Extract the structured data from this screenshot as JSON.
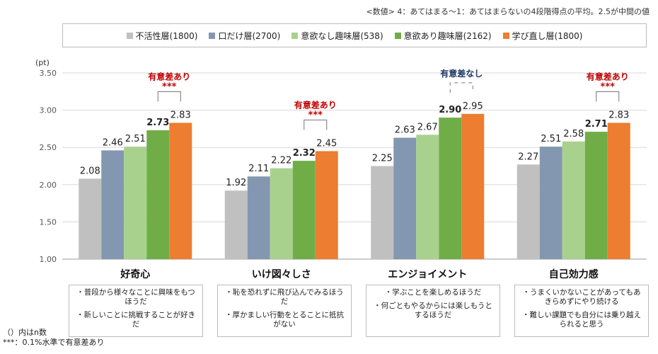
{
  "note": "<数値> 4：あてはまる～1：あてはまらないの4段階得点の平均。2.5が中間の値",
  "legend": [
    {
      "name": "不活性層(1800)",
      "color": "#c0c0c0"
    },
    {
      "name": "口だけ層(2700)",
      "color": "#8497b0"
    },
    {
      "name": "意欲なし趣味層(538)",
      "color": "#a9d18e"
    },
    {
      "name": "意欲あり趣味層(2162)",
      "color": "#70ad47"
    },
    {
      "name": "学び直し層(1800)",
      "color": "#ed7d31"
    }
  ],
  "chart_data": {
    "type": "bar",
    "ylabel": "(pt)",
    "ylim": [
      1.0,
      3.5
    ],
    "yticks": [
      "1.00",
      "1.50",
      "2.00",
      "2.50",
      "3.00",
      "3.50"
    ],
    "categories": [
      "好奇心",
      "いけ図々しさ",
      "エンジョイメント",
      "自己効力感"
    ],
    "series": [
      {
        "name": "不活性層(1800)",
        "color": "#c0c0c0",
        "values": [
          2.08,
          1.92,
          2.25,
          2.27
        ]
      },
      {
        "name": "口だけ層(2700)",
        "color": "#8497b0",
        "values": [
          2.46,
          2.11,
          2.63,
          2.51
        ]
      },
      {
        "name": "意欲なし趣味層(538)",
        "color": "#a9d18e",
        "values": [
          2.51,
          2.22,
          2.67,
          2.58
        ]
      },
      {
        "name": "意欲あり趣味層(2162)",
        "color": "#70ad47",
        "values": [
          2.73,
          2.32,
          2.9,
          2.71
        ]
      },
      {
        "name": "学び直し層(1800)",
        "color": "#ed7d31",
        "values": [
          2.83,
          2.45,
          2.95,
          2.83
        ]
      }
    ],
    "data_labels": [
      [
        "2.08",
        "2.46",
        "2.51",
        "2.73",
        "2.83"
      ],
      [
        "1.92",
        "2.11",
        "2.22",
        "2.32",
        "2.45"
      ],
      [
        "2.25",
        "2.63",
        "2.67",
        "2.90",
        "2.95"
      ],
      [
        "2.27",
        "2.51",
        "2.58",
        "2.71",
        "2.83"
      ]
    ],
    "significance": [
      {
        "label": "有意差あり",
        "stars": "***",
        "color": "#c00000"
      },
      {
        "label": "有意差あり",
        "stars": "***",
        "color": "#c00000"
      },
      {
        "label": "有意差なし",
        "stars": "",
        "color": "#1f3864"
      },
      {
        "label": "有意差あり",
        "stars": "***",
        "color": "#c00000"
      }
    ]
  },
  "descriptions": [
    [
      "・普段から様々なことに興味をもつほうだ",
      "・新しいことに挑戦することが好きだ"
    ],
    [
      "・恥を恐れずに飛び込んでみるほうだ",
      "・厚かましい行動をとることに抵抗がない"
    ],
    [
      "・学ぶことを楽しめるほうだ",
      "・何ごともやるからには楽しもうとするほうだ"
    ],
    [
      "・うまくいかないことがあってもあきらめずにやり続ける",
      "・難しい課題でも自分には乗り越えられると思う"
    ]
  ],
  "footnotes": [
    "（）内はn数",
    "***：0.1%水準で有意差あり"
  ]
}
